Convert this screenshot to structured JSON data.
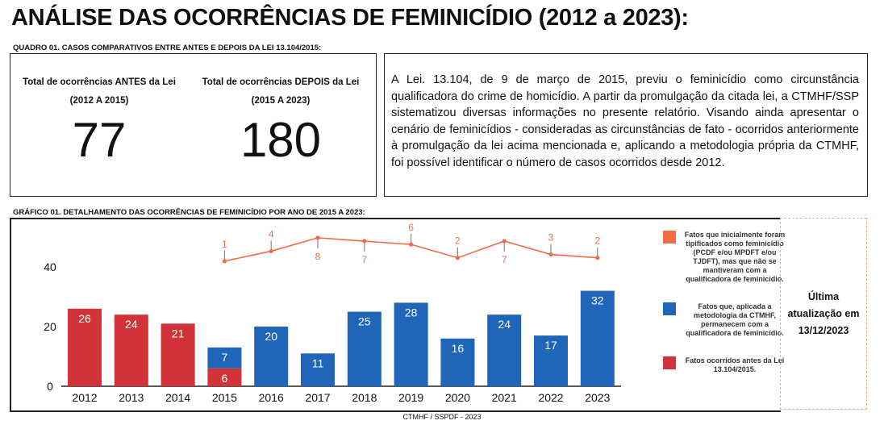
{
  "title": "ANÁLISE DAS OCORRÊNCIAS DE FEMINICÍDIO (2012 a 2023):",
  "quadro": {
    "caption": "QUADRO 01. CASOS COMPARATIVOS ENTRE ANTES E DEPOIS DA LEI 13.104/2015:",
    "before_label_1": "Total de ocorrências ANTES da Lei",
    "before_label_2": "(2012 A 2015)",
    "before_value": "77",
    "after_label_1": "Total de ocorrências DEPOIS da Lei",
    "after_label_2": "(2015 A 2023)",
    "after_value": "180",
    "text": "A Lei. 13.104, de 9 de março de 2015, previu o feminicídio como circunstância qualificadora do crime de homicídio. A partir da promulgação da citada lei, a CTMHF/SSP sistematizou diversas informações no presente relatório. Visando ainda apresentar o cenário de feminicídios - consideradas as circunstâncias de fato - ocorridos anteriormente à promulgação da lei acima mencionada e, aplicando a metodologia própria da CTMHF, foi possível identificar o número de casos ocorridos desde 2012."
  },
  "grafico_caption": "GRÁFICO 01.  DETALHAMENTO DAS OCORRÊNCIAS DE FEMINICÍDIO POR ANO DE 2015 A 2023:",
  "last_update": {
    "l1": "Última",
    "l2": "atualização em",
    "l3": "13/12/2023"
  },
  "footer": "CTMHF / SSPDF - 2023",
  "chart_data": {
    "type": "bar",
    "categories": [
      "2012",
      "2013",
      "2014",
      "2015",
      "2016",
      "2017",
      "2018",
      "2019",
      "2020",
      "2021",
      "2022",
      "2023"
    ],
    "yticks": [
      "0",
      "20",
      "40"
    ],
    "ylim": [
      0,
      40
    ],
    "series": [
      {
        "name": "Fatos ocorridos  antes da Lei 13.104/2015.",
        "color": "#d23338",
        "values": [
          26,
          24,
          21,
          6,
          null,
          null,
          null,
          null,
          null,
          null,
          null,
          null
        ]
      },
      {
        "name": "Fatos que, aplicada a metodologia da CTMHF, permanecem com a qualificadora de feminicídio.",
        "color": "#1f65b8",
        "values": [
          null,
          null,
          null,
          7,
          20,
          11,
          25,
          28,
          16,
          24,
          17,
          32
        ]
      },
      {
        "name": "Fatos que inicialmente foram tipificados como feminicídio (PCDF e/ou MPDFT e/ou TJDFT), mas que não se mantiveram com a qualificadora de feminicídio.",
        "color": "#f26b43",
        "type": "line",
        "values": [
          null,
          null,
          null,
          1,
          4,
          8,
          7,
          6,
          2,
          7,
          3,
          2
        ],
        "label_position": [
          "",
          "",
          "",
          "above",
          "above",
          "below",
          "below",
          "above",
          "above",
          "below",
          "above",
          "above"
        ]
      }
    ]
  }
}
